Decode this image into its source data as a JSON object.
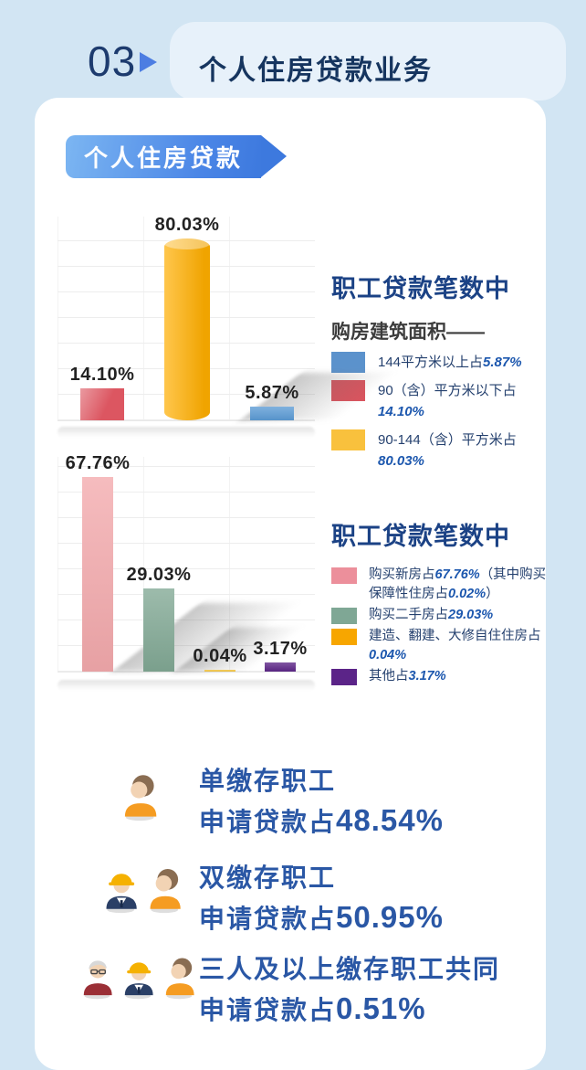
{
  "header": {
    "section_number": "03",
    "title": "个人住房贷款业务"
  },
  "ribbon": {
    "label": "个人住房贷款"
  },
  "chart_data": [
    {
      "type": "bar",
      "title": "职工贷款笔数中",
      "subtitle": "购房建筑面积——",
      "ylim": [
        0,
        90
      ],
      "grid": true,
      "legend_position": "right",
      "bars": [
        {
          "category": "90（含）平方米以下",
          "value": 14.1,
          "label": "14.10%",
          "color": "#dc5661"
        },
        {
          "category": "90-144（含）平方米",
          "value": 80.03,
          "label": "80.03%",
          "color": "#ffae00"
        },
        {
          "category": "144平方米以上",
          "value": 5.87,
          "label": "5.87%",
          "color": "#5b9bd5"
        }
      ],
      "legend": [
        {
          "color": "#5b92cc",
          "text": "144平方米以上占",
          "pct": "5.87%"
        },
        {
          "color": "#d9545e",
          "text": "90（含）平方米以下占",
          "pct": "14.10%"
        },
        {
          "color": "#f9c13d",
          "text": "90-144（含）平方米占",
          "pct": "80.03%"
        }
      ]
    },
    {
      "type": "bar",
      "title": "职工贷款笔数中",
      "ylim": [
        0,
        75
      ],
      "grid": true,
      "legend_position": "right",
      "note": "其中购买保障性住房占0.02%",
      "bars": [
        {
          "category": "购买新房",
          "value": 67.76,
          "label": "67.76%",
          "color": "#f3a9ac"
        },
        {
          "category": "购买二手房",
          "value": 29.03,
          "label": "29.03%",
          "color": "#81a894"
        },
        {
          "category": "建造、翻建、大修自住住房",
          "value": 0.04,
          "label": "0.04%",
          "color": "#f3c33b"
        },
        {
          "category": "其他",
          "value": 3.17,
          "label": "3.17%",
          "color": "#5c2687"
        }
      ],
      "legend": [
        {
          "color": "#ec8f9b",
          "t1": "购买新房占",
          "p1": "67.76%",
          "t2": "（其中购买保障性住房占",
          "p2": "0.02%",
          "t3": "）"
        },
        {
          "color": "#7fa795",
          "t1": "购买二手房占",
          "p1": "29.03%"
        },
        {
          "color": "#f7a600",
          "t1": "建造、翻建、大修自住住房占",
          "p1": "0.04%"
        },
        {
          "color": "#5b2488",
          "t1": "其他占",
          "p1": "3.17%"
        }
      ]
    }
  ],
  "stats": [
    {
      "line1": "单缴存职工",
      "line2_prefix": "申请贷款占",
      "pct": "48.54%"
    },
    {
      "line1": "双缴存职工",
      "line2_prefix": "申请贷款占",
      "pct": "50.95%"
    },
    {
      "line1": "三人及以上缴存职工共同",
      "line2_prefix": "申请贷款占",
      "pct": "0.51%"
    }
  ]
}
